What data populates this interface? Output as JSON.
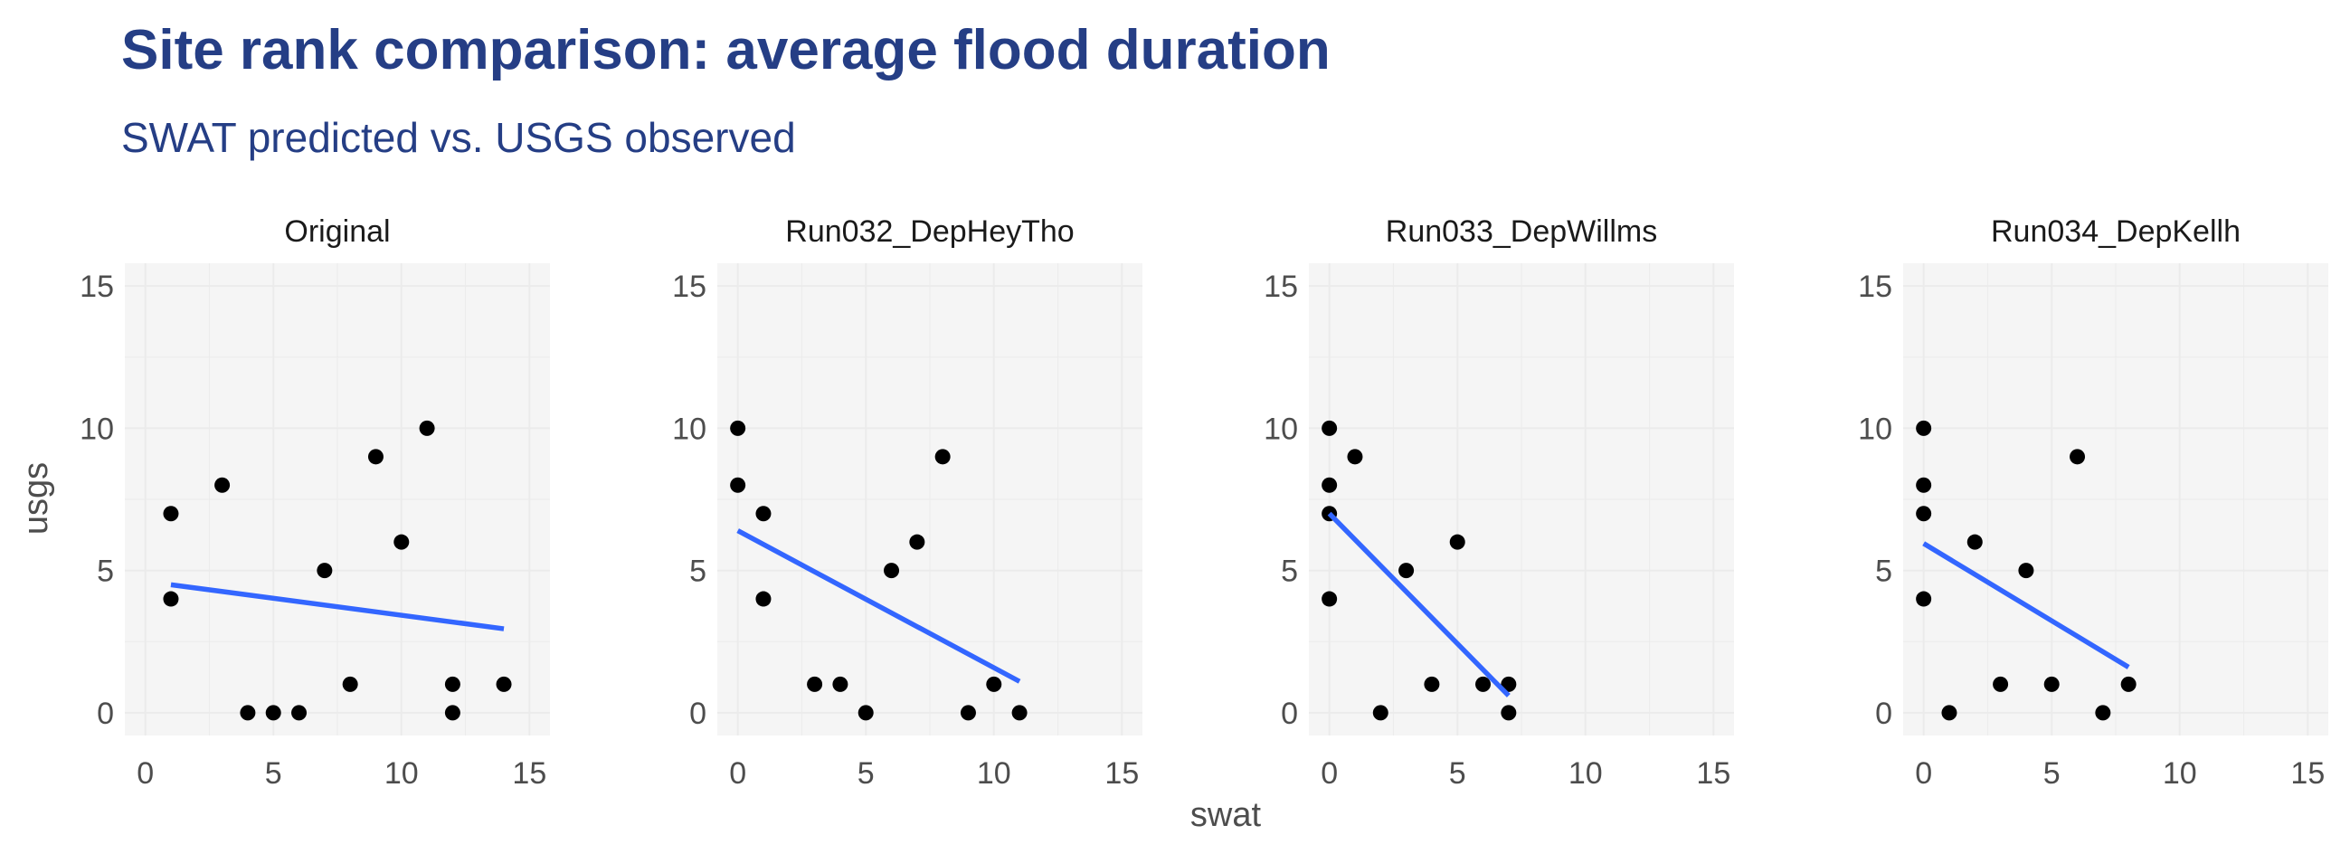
{
  "colors": {
    "title": "#253e85",
    "panel_bg": "#f5f5f5",
    "grid": "#ebebeb",
    "point": "#000000",
    "fit_line": "#3366ff"
  },
  "chart_data": {
    "type": "scatter",
    "title": "Site rank comparison: average flood duration",
    "subtitle": "SWAT predicted vs. USGS observed",
    "xlabel": "swat",
    "ylabel": "usgs",
    "xlim": [
      -0.8,
      15.8
    ],
    "ylim": [
      -0.8,
      15.8
    ],
    "x_ticks": [
      0,
      5,
      10,
      15
    ],
    "y_ticks": [
      0,
      5,
      10,
      15
    ],
    "grid": true,
    "legend": "none",
    "panels": [
      {
        "name": "Original",
        "points": [
          [
            1,
            7
          ],
          [
            1,
            4
          ],
          [
            3,
            8
          ],
          [
            4,
            0
          ],
          [
            5,
            0
          ],
          [
            6,
            0
          ],
          [
            7,
            5
          ],
          [
            8,
            1
          ],
          [
            9,
            9
          ],
          [
            10,
            6
          ],
          [
            11,
            10
          ],
          [
            12,
            1
          ],
          [
            12,
            0
          ],
          [
            14,
            1
          ]
        ],
        "fit": {
          "x": [
            1,
            14
          ],
          "y": [
            4.5,
            2.95
          ]
        }
      },
      {
        "name": "Run032_DepHeyTho",
        "points": [
          [
            0,
            10
          ],
          [
            0,
            8
          ],
          [
            1,
            7
          ],
          [
            1,
            4
          ],
          [
            3,
            1
          ],
          [
            4,
            1
          ],
          [
            5,
            0
          ],
          [
            6,
            5
          ],
          [
            7,
            6
          ],
          [
            8,
            9
          ],
          [
            9,
            0
          ],
          [
            10,
            1
          ],
          [
            11,
            0
          ]
        ],
        "fit": {
          "x": [
            0,
            11
          ],
          "y": [
            6.4,
            1.1
          ]
        }
      },
      {
        "name": "Run033_DepWillms",
        "points": [
          [
            0,
            10
          ],
          [
            0,
            8
          ],
          [
            0,
            7
          ],
          [
            0,
            4
          ],
          [
            1,
            9
          ],
          [
            2,
            0
          ],
          [
            3,
            5
          ],
          [
            4,
            1
          ],
          [
            5,
            6
          ],
          [
            6,
            1
          ],
          [
            7,
            1
          ],
          [
            7,
            0
          ]
        ],
        "fit": {
          "x": [
            0,
            7
          ],
          "y": [
            7.0,
            0.6
          ]
        }
      },
      {
        "name": "Run034_DepKellh",
        "points": [
          [
            0,
            10
          ],
          [
            0,
            8
          ],
          [
            0,
            7
          ],
          [
            0,
            4
          ],
          [
            1,
            0
          ],
          [
            2,
            6
          ],
          [
            3,
            1
          ],
          [
            4,
            5
          ],
          [
            5,
            1
          ],
          [
            6,
            9
          ],
          [
            7,
            0
          ],
          [
            8,
            1
          ]
        ],
        "fit": {
          "x": [
            0,
            8
          ],
          "y": [
            5.95,
            1.6
          ]
        }
      }
    ]
  }
}
